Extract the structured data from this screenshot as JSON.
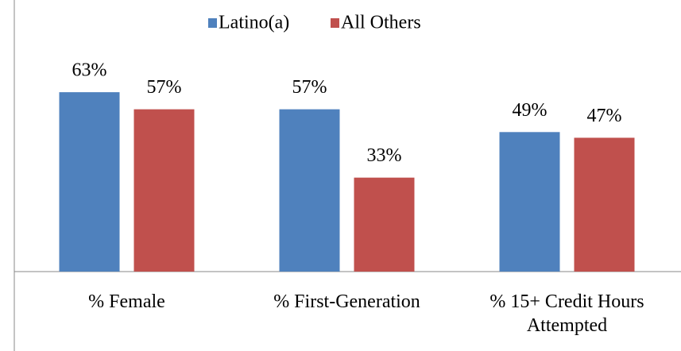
{
  "chart_data": {
    "type": "bar",
    "categories": [
      "% Female",
      "% First-Generation",
      "% 15+ Credit Hours Attempted"
    ],
    "series": [
      {
        "name": "Latino(a)",
        "color": "#4f81bd",
        "values": [
          63,
          57,
          49
        ],
        "value_labels": [
          "63%",
          "57%",
          "49%"
        ]
      },
      {
        "name": "All Others",
        "color": "#c0504d",
        "values": [
          57,
          33,
          47
        ],
        "value_labels": [
          "57%",
          "33%",
          "47%"
        ]
      }
    ],
    "ylim": [
      0,
      70
    ],
    "legend": "top"
  }
}
